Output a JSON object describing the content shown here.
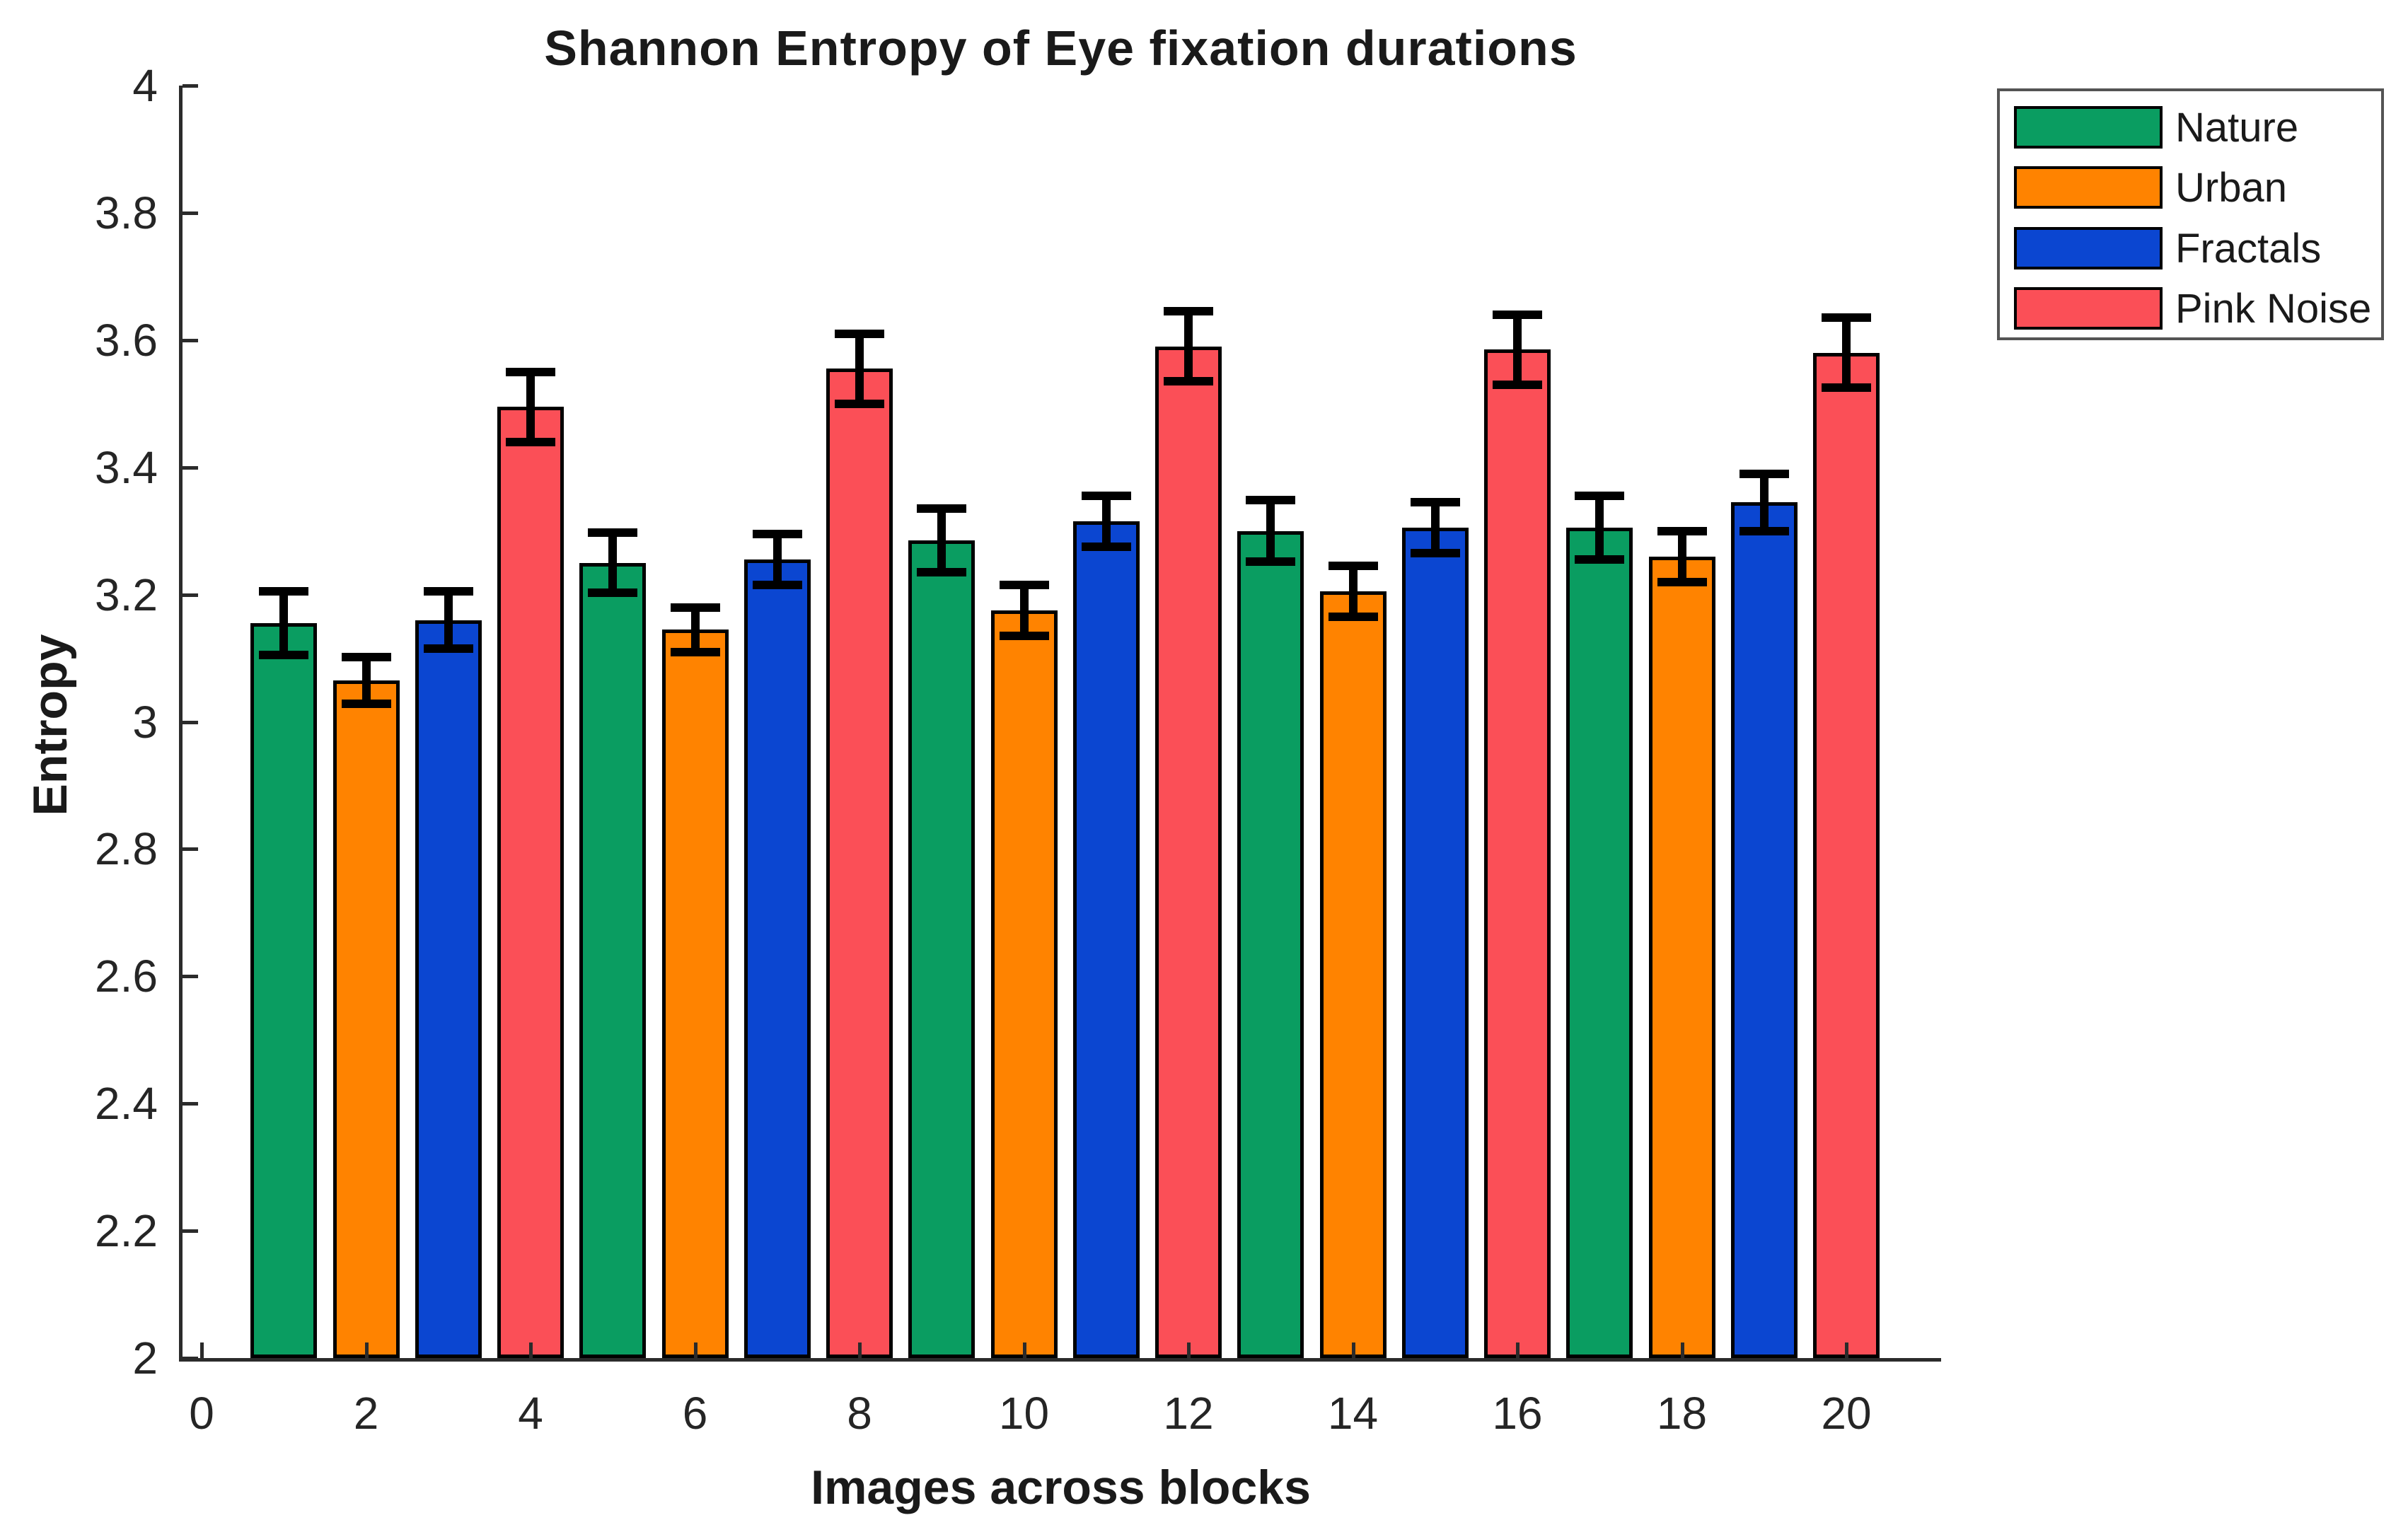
{
  "figure": {
    "title": "Shannon Entropy of Eye fixation durations",
    "xlabel": "Images across blocks",
    "ylabel": "Entropy"
  },
  "legend": {
    "position": "outside-top-right",
    "items": [
      {
        "label": "Nature",
        "color": "#0A9D61"
      },
      {
        "label": "Urban",
        "color": "#FF8300"
      },
      {
        "label": "Fractals",
        "color": "#0B46D1"
      },
      {
        "label": "Pink Noise",
        "color": "#FB4F57"
      }
    ]
  },
  "chart_data": {
    "type": "bar",
    "title": "Shannon Entropy of Eye fixation durations",
    "xlabel": "Images across blocks",
    "ylabel": "Entropy",
    "ylim": [
      2,
      4
    ],
    "xlim": [
      -0.3,
      21.2
    ],
    "grid": false,
    "error_bars": true,
    "legend_position": "outside top-right",
    "bar_width_units": 0.81,
    "x_ticks": [
      0,
      2,
      4,
      6,
      8,
      10,
      12,
      14,
      16,
      18,
      20
    ],
    "x_tick_labels": [
      "0",
      "2",
      "4",
      "6",
      "8",
      "10",
      "12",
      "14",
      "16",
      "18",
      "20"
    ],
    "y_ticks": [
      2,
      2.2,
      2.4,
      2.6,
      2.8,
      3,
      3.2,
      3.4,
      3.6,
      3.8,
      4
    ],
    "y_tick_labels": [
      "2",
      "2.2",
      "2.4",
      "2.6",
      "2.8",
      "3",
      "3.2",
      "3.4",
      "3.6",
      "3.8",
      "4"
    ],
    "series": [
      {
        "name": "Nature",
        "color": "#0A9D61",
        "x": [
          1,
          5,
          9,
          13,
          17
        ],
        "values": [
          3.155,
          3.25,
          3.285,
          3.3,
          3.305
        ],
        "errors": [
          0.05,
          0.047,
          0.05,
          0.048,
          0.05
        ]
      },
      {
        "name": "Urban",
        "color": "#FF8300",
        "x": [
          2,
          6,
          10,
          14,
          18
        ],
        "values": [
          3.065,
          3.145,
          3.175,
          3.205,
          3.26
        ],
        "errors": [
          0.037,
          0.035,
          0.04,
          0.04,
          0.04
        ]
      },
      {
        "name": "Fractals",
        "color": "#0B46D1",
        "x": [
          3,
          7,
          11,
          15,
          19
        ],
        "values": [
          3.16,
          3.255,
          3.315,
          3.305,
          3.345
        ],
        "errors": [
          0.045,
          0.04,
          0.04,
          0.04,
          0.045
        ]
      },
      {
        "name": "Pink Noise",
        "color": "#FB4F57",
        "x": [
          4,
          8,
          12,
          16,
          20
        ],
        "values": [
          3.495,
          3.555,
          3.59,
          3.585,
          3.58
        ],
        "errors": [
          0.055,
          0.055,
          0.055,
          0.055,
          0.055
        ]
      }
    ]
  },
  "style": {
    "axis_color": "#2b2b2b",
    "text_color": "#252525",
    "bar_edge_color": "#000000",
    "error_bar_color": "#000000",
    "legend_border_color": "#545454",
    "background": "#FFFFFF"
  }
}
